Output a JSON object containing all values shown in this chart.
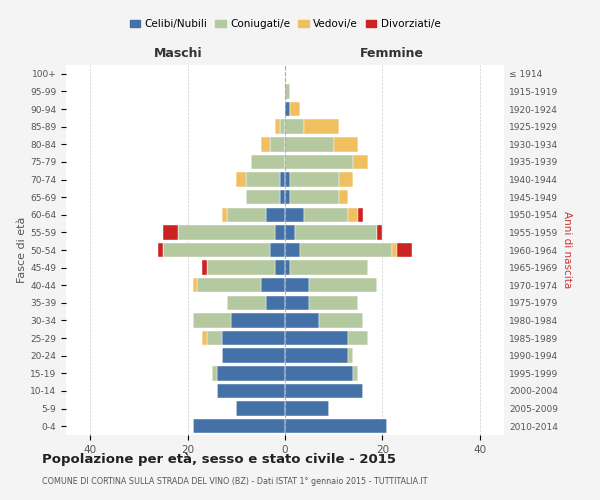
{
  "age_groups": [
    "0-4",
    "5-9",
    "10-14",
    "15-19",
    "20-24",
    "25-29",
    "30-34",
    "35-39",
    "40-44",
    "45-49",
    "50-54",
    "55-59",
    "60-64",
    "65-69",
    "70-74",
    "75-79",
    "80-84",
    "85-89",
    "90-94",
    "95-99",
    "100+"
  ],
  "birth_years": [
    "2010-2014",
    "2005-2009",
    "2000-2004",
    "1995-1999",
    "1990-1994",
    "1985-1989",
    "1980-1984",
    "1975-1979",
    "1970-1974",
    "1965-1969",
    "1960-1964",
    "1955-1959",
    "1950-1954",
    "1945-1949",
    "1940-1944",
    "1935-1939",
    "1930-1934",
    "1925-1929",
    "1920-1924",
    "1915-1919",
    "≤ 1914"
  ],
  "colors": {
    "celibi": "#4472a8",
    "coniugati": "#b5c9a0",
    "vedovi": "#f0c060",
    "divorziati": "#cc2222"
  },
  "maschi": {
    "celibi": [
      19,
      10,
      14,
      14,
      13,
      13,
      11,
      4,
      5,
      2,
      3,
      2,
      4,
      1,
      1,
      0,
      0,
      0,
      0,
      0,
      0
    ],
    "coniugati": [
      0,
      0,
      0,
      1,
      0,
      3,
      8,
      8,
      13,
      14,
      22,
      20,
      8,
      7,
      7,
      7,
      3,
      1,
      0,
      0,
      0
    ],
    "vedovi": [
      0,
      0,
      0,
      0,
      0,
      1,
      0,
      0,
      1,
      0,
      0,
      0,
      1,
      0,
      2,
      0,
      2,
      1,
      0,
      0,
      0
    ],
    "divorziati": [
      0,
      0,
      0,
      0,
      0,
      0,
      0,
      0,
      0,
      1,
      1,
      3,
      0,
      0,
      0,
      0,
      0,
      0,
      0,
      0,
      0
    ]
  },
  "femmine": {
    "celibi": [
      21,
      9,
      16,
      14,
      13,
      13,
      7,
      5,
      5,
      1,
      3,
      2,
      4,
      1,
      1,
      0,
      0,
      0,
      1,
      0,
      0
    ],
    "coniugati": [
      0,
      0,
      0,
      1,
      1,
      4,
      9,
      10,
      14,
      16,
      19,
      17,
      9,
      10,
      10,
      14,
      10,
      4,
      0,
      1,
      0
    ],
    "vedovi": [
      0,
      0,
      0,
      0,
      0,
      0,
      0,
      0,
      0,
      0,
      1,
      0,
      2,
      2,
      3,
      3,
      5,
      7,
      2,
      0,
      0
    ],
    "divorziati": [
      0,
      0,
      0,
      0,
      0,
      0,
      0,
      0,
      0,
      0,
      3,
      1,
      1,
      0,
      0,
      0,
      0,
      0,
      0,
      0,
      0
    ]
  },
  "xlim": 45,
  "title": "Popolazione per età, sesso e stato civile - 2015",
  "subtitle": "COMUNE DI CORTINA SULLA STRADA DEL VINO (BZ) - Dati ISTAT 1° gennaio 2015 - TUTTITALIA.IT",
  "ylabel_left": "Fasce di età",
  "ylabel_right": "Anni di nascita",
  "xlabel_maschi": "Maschi",
  "xlabel_femmine": "Femmine",
  "legend_labels": [
    "Celibi/Nubili",
    "Coniugati/e",
    "Vedovi/e",
    "Divorziati/e"
  ],
  "bg_color": "#f4f4f4",
  "plot_bg_color": "#ffffff"
}
